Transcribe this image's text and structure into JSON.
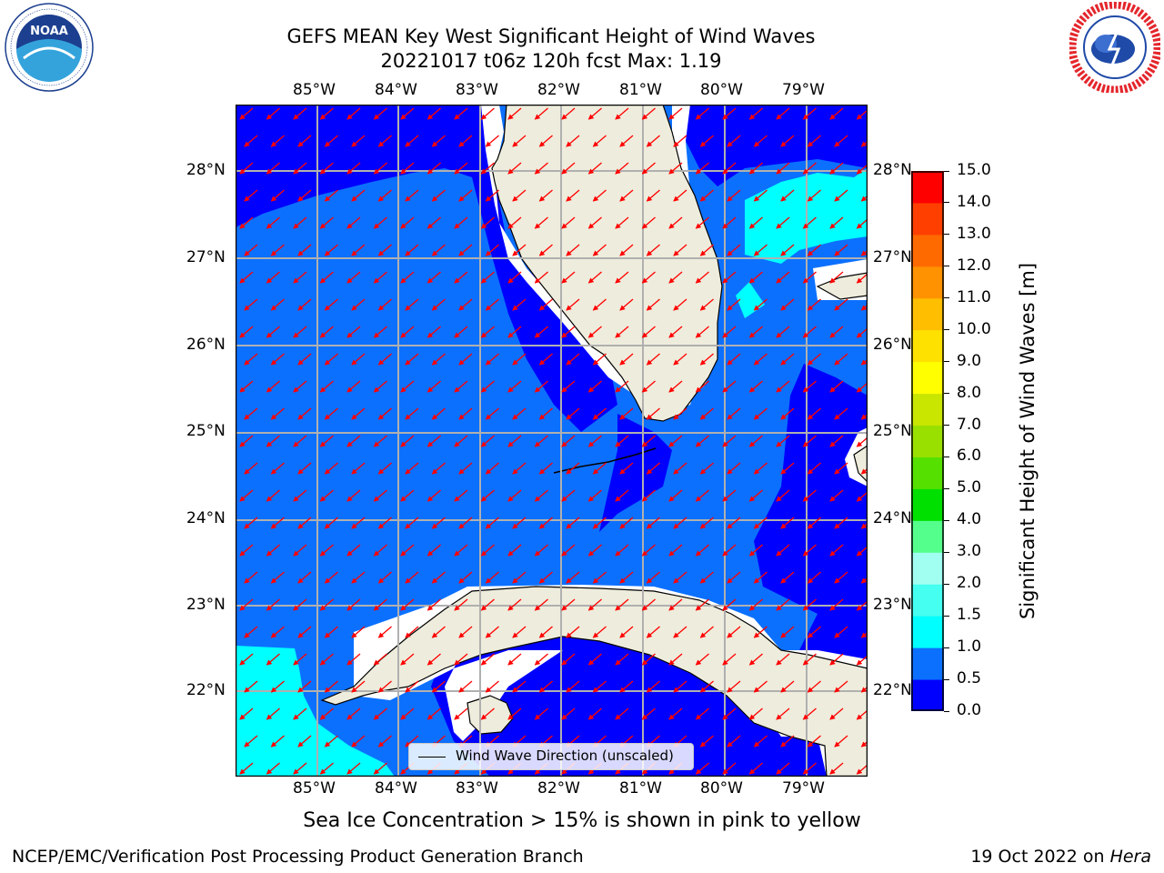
{
  "title": {
    "line1": "GEFS MEAN Key West Significant Height of Wind Waves",
    "line2": "20221017 t06z 120h fcst   Max: 1.19"
  },
  "logos": {
    "left": {
      "name": "NOAA",
      "text": "NOAA",
      "ring_text": "NATIONAL OCEANIC AND ATMOSPHERIC ADMINISTRATION · U.S. DEPARTMENT OF COMMERCE",
      "colors": {
        "dark": "#1c3f8f",
        "light": "#34a3dc"
      }
    },
    "right": {
      "name": "National Weather Service",
      "ring_text": "NATIONAL WEATHER SERVICE",
      "colors": {
        "ring": "#e4262c",
        "blue": "#1f4aa8"
      }
    }
  },
  "map": {
    "longitude_labels": [
      "85°W",
      "84°W",
      "83°W",
      "82°W",
      "81°W",
      "80°W",
      "79°W"
    ],
    "latitude_labels": [
      "28°N",
      "27°N",
      "26°N",
      "25°N",
      "24°N",
      "23°N",
      "22°N"
    ],
    "vector_color": "#ff0000",
    "vector_direction": "from east / northeast (arrows point southwest)",
    "land_color": "#eeecdc"
  },
  "legend": {
    "label": "Wind Wave Direction (unscaled)"
  },
  "colorbar": {
    "label": "Significant Height of Wind Waves [m]",
    "tick_labels": [
      "0.0",
      "0.5",
      "1.0",
      "1.5",
      "2.0",
      "3.0",
      "4.0",
      "5.0",
      "6.0",
      "7.0",
      "8.0",
      "9.0",
      "10.0",
      "11.0",
      "12.0",
      "13.0",
      "14.0",
      "15.0"
    ],
    "colors": [
      "#0000ff",
      "#0c70ff",
      "#00ffff",
      "#45fff0",
      "#a0fff0",
      "#55ff8c",
      "#00e000",
      "#55e000",
      "#99e000",
      "#c8e600",
      "#ffff00",
      "#ffe100",
      "#ffbf00",
      "#ff9200",
      "#ff6a00",
      "#ff3f00",
      "#ff0000"
    ]
  },
  "notes": {
    "sea_ice": "Sea Ice Concentration > 15% is shown in pink to yellow",
    "credit": "NCEP/EMC/Verification Post Processing Product Generation Branch",
    "date_prefix": "19 Oct 2022 on ",
    "machine": "Hera"
  }
}
